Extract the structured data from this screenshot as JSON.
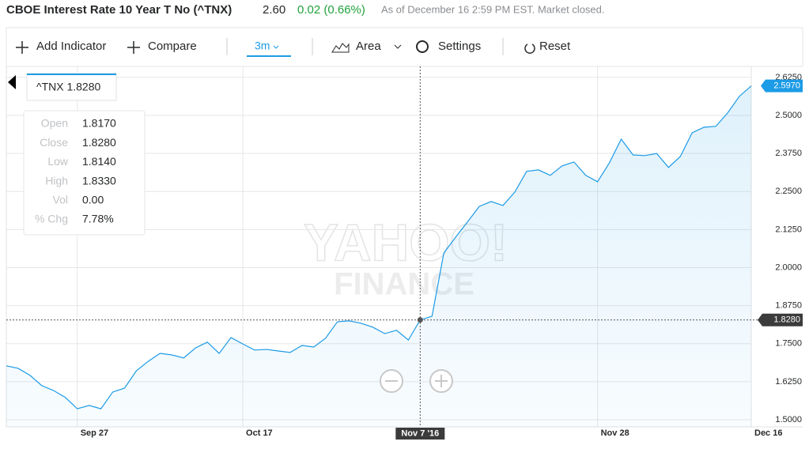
{
  "header": {
    "title": "CBOE Interest Rate 10 Year T No (^TNX)",
    "price": "2.60",
    "change": "0.02 (0.66%)",
    "status": "As of December 16 2:59 PM EST. Market closed."
  },
  "toolbar": {
    "add_indicator": "Add Indicator",
    "compare": "Compare",
    "range": "3m",
    "chart_type": "Area",
    "settings": "Settings",
    "reset": "Reset"
  },
  "tooltip": {
    "symbol_value": "^TNX 1.8280",
    "rows": [
      [
        "Open",
        "1.8170"
      ],
      [
        "Close",
        "1.8280"
      ],
      [
        "Low",
        "1.8140"
      ],
      [
        "High",
        "1.8330"
      ],
      [
        "Vol",
        "0.00"
      ],
      [
        "% Chg",
        "7.78%"
      ]
    ]
  },
  "watermark": [
    "YAHOO!",
    "FINANCE"
  ],
  "chart_data": {
    "type": "area",
    "color": "#1c9be6",
    "grid": true,
    "categories": [
      null,
      null,
      null,
      null,
      null,
      null,
      "Sep 27",
      null,
      null,
      null,
      null,
      null,
      null,
      null,
      null,
      null,
      null,
      null,
      null,
      null,
      "Oct 17",
      null,
      null,
      null,
      null,
      null,
      null,
      null,
      null,
      null,
      null,
      null,
      null,
      null,
      null,
      null,
      null,
      null,
      null,
      null,
      null,
      null,
      null,
      null,
      null,
      null,
      null,
      null,
      null,
      null,
      "Nov 28",
      null,
      null,
      null,
      null,
      null,
      null,
      null,
      null,
      null,
      null,
      null,
      null,
      "Dec 16"
    ],
    "values": [
      1.677,
      1.669,
      1.646,
      1.612,
      1.596,
      1.573,
      1.536,
      1.547,
      1.536,
      1.591,
      1.604,
      1.661,
      1.692,
      1.718,
      1.713,
      1.703,
      1.736,
      1.755,
      1.718,
      1.77,
      1.749,
      1.729,
      1.731,
      1.726,
      1.721,
      1.744,
      1.739,
      1.768,
      1.822,
      1.825,
      1.817,
      1.804,
      1.783,
      1.794,
      1.762,
      1.828,
      1.84,
      2.048,
      2.1,
      2.15,
      2.201,
      2.217,
      2.204,
      2.248,
      2.316,
      2.321,
      2.303,
      2.334,
      2.347,
      2.303,
      2.282,
      2.344,
      2.422,
      2.37,
      2.368,
      2.375,
      2.329,
      2.365,
      2.443,
      2.461,
      2.464,
      2.508,
      2.563,
      2.597
    ],
    "ylim": [
      1.4766,
      2.661
    ],
    "yticks": [
      {
        "value": 1.5,
        "label": "1.5000"
      },
      {
        "value": 1.625,
        "label": "1.6250"
      },
      {
        "value": 1.75,
        "label": "1.7500"
      },
      {
        "value": 1.875,
        "label": "1.8750"
      },
      {
        "value": 2.0,
        "label": "2.0000"
      },
      {
        "value": 2.125,
        "label": "2.1250"
      },
      {
        "value": 2.25,
        "label": "2.2500"
      },
      {
        "value": 2.375,
        "label": "2.3750"
      },
      {
        "value": 2.5,
        "label": "2.5000"
      },
      {
        "value": 2.625,
        "label": "2.6250"
      }
    ],
    "crosshair": {
      "label": "Nov 7 '16",
      "value": {
        "value": 1.828,
        "label": "1.8280"
      }
    },
    "last_price": {
      "value": 2.597,
      "label": "2.5970"
    }
  }
}
